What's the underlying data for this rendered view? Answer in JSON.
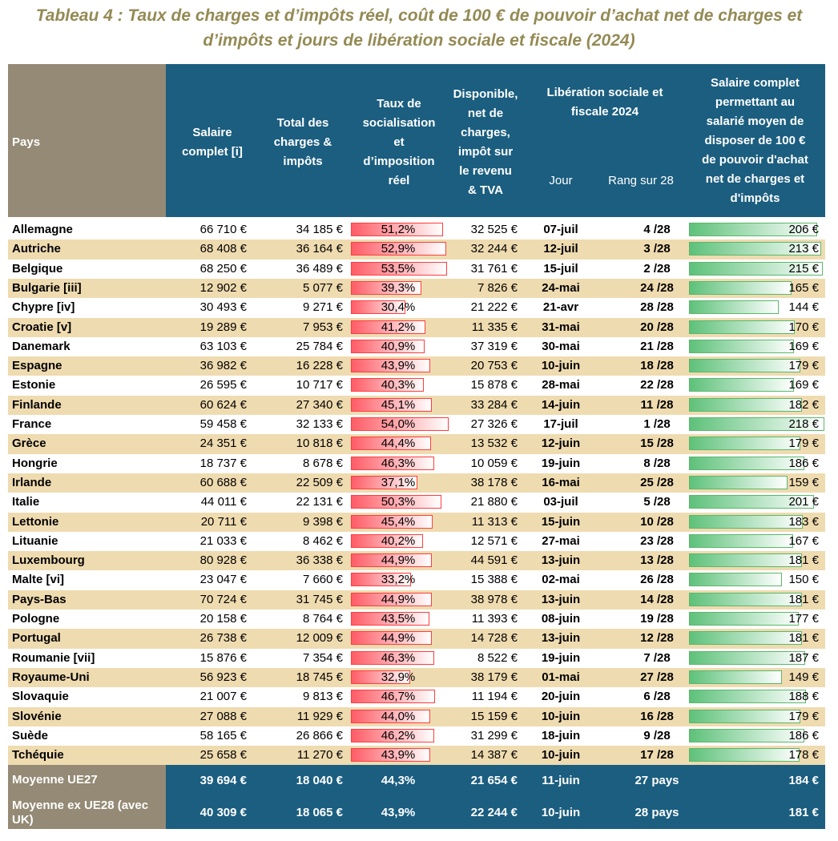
{
  "title": {
    "line1": "Tableau 4 : Taux de charges et d’impôts réel, coût de 100 € de pouvoir d’achat net de charges et",
    "line2": "d’impôts et jours de libération sociale et fiscale (2024)"
  },
  "headers": {
    "pays": "Pays",
    "salaire": "Salaire\ncomplet [i]",
    "charges": "Total des\ncharges &\nimpôts",
    "taux": "Taux de\nsocialisation\net\nd’imposition\nréel",
    "disponible": "Disponible,\nnet de\ncharges,\nimpôt sur\nle revenu\n& TVA",
    "liberation": "Libération sociale et\nfiscale 2024",
    "jour": "Jour",
    "rang": "Rang sur 28",
    "cout": "Salaire complet\npermettant au\nsalarié moyen de\ndisposer de 100  €\nde pouvoir d'achat\nnet de charges et\nd'impôts"
  },
  "rows": [
    {
      "pays": "Allemagne",
      "salaire": "66 710 €",
      "charges": "34 185 €",
      "taux": "51,2%",
      "taux_value": 51.2,
      "disponible": "32 525 €",
      "jour": "07-juil",
      "rang": "4 /28",
      "cout": "206 €",
      "cout_value": 206
    },
    {
      "pays": "Autriche",
      "salaire": "68 408 €",
      "charges": "36 164 €",
      "taux": "52,9%",
      "taux_value": 52.9,
      "disponible": "32 244 €",
      "jour": "12-juil",
      "rang": "3 /28",
      "cout": "213 €",
      "cout_value": 213
    },
    {
      "pays": "Belgique",
      "salaire": "68 250 €",
      "charges": "36 489 €",
      "taux": "53,5%",
      "taux_value": 53.5,
      "disponible": "31 761 €",
      "jour": "15-juil",
      "rang": "2 /28",
      "cout": "215 €",
      "cout_value": 215
    },
    {
      "pays": "Bulgarie [iii]",
      "salaire": "12 902 €",
      "charges": "5 077 €",
      "taux": "39,3%",
      "taux_value": 39.3,
      "disponible": "7 826 €",
      "jour": "24-mai",
      "rang": "24 /28",
      "cout": "165 €",
      "cout_value": 165
    },
    {
      "pays": "Chypre [iv]",
      "salaire": "30 493 €",
      "charges": "9 271 €",
      "taux": "30,4%",
      "taux_value": 30.4,
      "disponible": "21 222 €",
      "jour": "21-avr",
      "rang": "28 /28",
      "cout": "144 €",
      "cout_value": 144
    },
    {
      "pays": "Croatie [v]",
      "salaire": "19 289 €",
      "charges": "7 953 €",
      "taux": "41,2%",
      "taux_value": 41.2,
      "disponible": "11 335 €",
      "jour": "31-mai",
      "rang": "20 /28",
      "cout": "170 €",
      "cout_value": 170
    },
    {
      "pays": "Danemark",
      "salaire": "63 103 €",
      "charges": "25 784 €",
      "taux": "40,9%",
      "taux_value": 40.9,
      "disponible": "37 319 €",
      "jour": "30-mai",
      "rang": "21 /28",
      "cout": "169 €",
      "cout_value": 169
    },
    {
      "pays": "Espagne",
      "salaire": "36 982 €",
      "charges": "16 228 €",
      "taux": "43,9%",
      "taux_value": 43.9,
      "disponible": "20 753 €",
      "jour": "10-juin",
      "rang": "18 /28",
      "cout": "179 €",
      "cout_value": 179
    },
    {
      "pays": "Estonie",
      "salaire": "26 595 €",
      "charges": "10 717 €",
      "taux": "40,3%",
      "taux_value": 40.3,
      "disponible": "15 878 €",
      "jour": "28-mai",
      "rang": "22 /28",
      "cout": "169 €",
      "cout_value": 169
    },
    {
      "pays": "Finlande",
      "salaire": "60 624 €",
      "charges": "27 340 €",
      "taux": "45,1%",
      "taux_value": 45.1,
      "disponible": "33 284 €",
      "jour": "14-juin",
      "rang": "11 /28",
      "cout": "182 €",
      "cout_value": 182
    },
    {
      "pays": "France",
      "salaire": "59 458 €",
      "charges": "32 133 €",
      "taux": "54,0%",
      "taux_value": 54.0,
      "disponible": "27 326 €",
      "jour": "17-juil",
      "rang": "1 /28",
      "cout": "218 €",
      "cout_value": 218
    },
    {
      "pays": "Grèce",
      "salaire": "24 351 €",
      "charges": "10 818 €",
      "taux": "44,4%",
      "taux_value": 44.4,
      "disponible": "13 532 €",
      "jour": "12-juin",
      "rang": "15 /28",
      "cout": "179 €",
      "cout_value": 179
    },
    {
      "pays": "Hongrie",
      "salaire": "18 737 €",
      "charges": "8 678 €",
      "taux": "46,3%",
      "taux_value": 46.3,
      "disponible": "10 059 €",
      "jour": "19-juin",
      "rang": "8 /28",
      "cout": "186 €",
      "cout_value": 186
    },
    {
      "pays": "Irlande",
      "salaire": "60 688 €",
      "charges": "22 509 €",
      "taux": "37,1%",
      "taux_value": 37.1,
      "disponible": "38 178 €",
      "jour": "16-mai",
      "rang": "25 /28",
      "cout": "159 €",
      "cout_value": 159
    },
    {
      "pays": "Italie",
      "salaire": "44 011 €",
      "charges": "22 131 €",
      "taux": "50,3%",
      "taux_value": 50.3,
      "disponible": "21 880 €",
      "jour": "03-juil",
      "rang": "5 /28",
      "cout": "201 €",
      "cout_value": 201
    },
    {
      "pays": "Lettonie",
      "salaire": "20 711 €",
      "charges": "9 398 €",
      "taux": "45,4%",
      "taux_value": 45.4,
      "disponible": "11 313 €",
      "jour": "15-juin",
      "rang": "10 /28",
      "cout": "183 €",
      "cout_value": 183
    },
    {
      "pays": "Lituanie",
      "salaire": "21 033 €",
      "charges": "8 462 €",
      "taux": "40,2%",
      "taux_value": 40.2,
      "disponible": "12 571 €",
      "jour": "27-mai",
      "rang": "23 /28",
      "cout": "167 €",
      "cout_value": 167
    },
    {
      "pays": "Luxembourg",
      "salaire": "80 928 €",
      "charges": "36 338 €",
      "taux": "44,9%",
      "taux_value": 44.9,
      "disponible": "44 591 €",
      "jour": "13-juin",
      "rang": "13 /28",
      "cout": "181 €",
      "cout_value": 181
    },
    {
      "pays": "Malte [vi]",
      "salaire": "23 047 €",
      "charges": "7 660 €",
      "taux": "33,2%",
      "taux_value": 33.2,
      "disponible": "15 388 €",
      "jour": "02-mai",
      "rang": "26 /28",
      "cout": "150 €",
      "cout_value": 150
    },
    {
      "pays": "Pays-Bas",
      "salaire": "70 724 €",
      "charges": "31 745 €",
      "taux": "44,9%",
      "taux_value": 44.9,
      "disponible": "38 978 €",
      "jour": "13-juin",
      "rang": "14 /28",
      "cout": "181 €",
      "cout_value": 181
    },
    {
      "pays": "Pologne",
      "salaire": "20 158 €",
      "charges": "8 764 €",
      "taux": "43,5%",
      "taux_value": 43.5,
      "disponible": "11 393 €",
      "jour": "08-juin",
      "rang": "19 /28",
      "cout": "177 €",
      "cout_value": 177
    },
    {
      "pays": "Portugal",
      "salaire": "26 738 €",
      "charges": "12 009 €",
      "taux": "44,9%",
      "taux_value": 44.9,
      "disponible": "14 728 €",
      "jour": "13-juin",
      "rang": "12 /28",
      "cout": "181 €",
      "cout_value": 181
    },
    {
      "pays": "Roumanie [vii]",
      "salaire": "15 876 €",
      "charges": "7 354 €",
      "taux": "46,3%",
      "taux_value": 46.3,
      "disponible": "8 522 €",
      "jour": "19-juin",
      "rang": "7 /28",
      "cout": "187 €",
      "cout_value": 187
    },
    {
      "pays": "Royaume-Uni",
      "salaire": "56 923 €",
      "charges": "18 745 €",
      "taux": "32,9%",
      "taux_value": 32.9,
      "disponible": "38 179 €",
      "jour": "01-mai",
      "rang": "27 /28",
      "cout": "149 €",
      "cout_value": 149
    },
    {
      "pays": "Slovaquie",
      "salaire": "21 007 €",
      "charges": "9 813 €",
      "taux": "46,7%",
      "taux_value": 46.7,
      "disponible": "11 194 €",
      "jour": "20-juin",
      "rang": "6 /28",
      "cout": "188 €",
      "cout_value": 188
    },
    {
      "pays": "Slovénie",
      "salaire": "27 088 €",
      "charges": "11 929 €",
      "taux": "44,0%",
      "taux_value": 44.0,
      "disponible": "15 159 €",
      "jour": "10-juin",
      "rang": "16 /28",
      "cout": "179 €",
      "cout_value": 179
    },
    {
      "pays": "Suède",
      "salaire": "58 165 €",
      "charges": "26 866 €",
      "taux": "46,2%",
      "taux_value": 46.2,
      "disponible": "31 299 €",
      "jour": "18-juin",
      "rang": "9 /28",
      "cout": "186 €",
      "cout_value": 186
    },
    {
      "pays": "Tchéquie",
      "salaire": "25 658 €",
      "charges": "11 270 €",
      "taux": "43,9%",
      "taux_value": 43.9,
      "disponible": "14 387 €",
      "jour": "10-juin",
      "rang": "17 /28",
      "cout": "178 €",
      "cout_value": 178
    }
  ],
  "footer": [
    {
      "pays": "Moyenne UE27",
      "salaire": "39 694 €",
      "charges": "18 040 €",
      "taux": "44,3%",
      "disponible": "21 654 €",
      "jour": "11-juin",
      "rang": "27  pays",
      "cout": "184 €"
    },
    {
      "pays": "Moyenne ex UE28 (avec\nUK)",
      "salaire": "40 309 €",
      "charges": "18 065 €",
      "taux": "43,9%",
      "disponible": "22 244 €",
      "jour": "10-juin",
      "rang": "28  pays",
      "cout": "181 €"
    }
  ],
  "colors": {
    "header_blue": "#1b5e80",
    "pays_header": "#948a75",
    "stripe": "#efdbb0",
    "red_bar": "#ff5c66",
    "green_bar": "#5ec17a",
    "title": "#948a54"
  }
}
